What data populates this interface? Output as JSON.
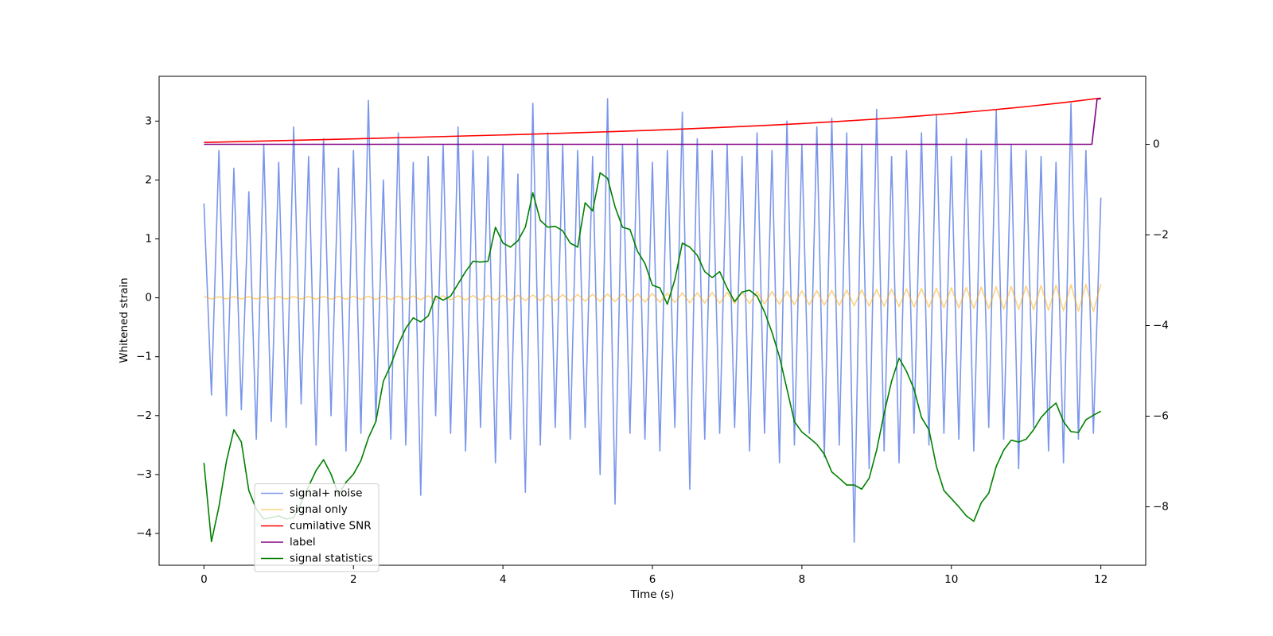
{
  "chart_data": {
    "type": "line",
    "xlabel": "Time (s)",
    "ylabel": "Whitened strain",
    "xlim": [
      -0.6,
      12.6
    ],
    "xticks": [
      0,
      2,
      4,
      6,
      8,
      10,
      12
    ],
    "ylim": [
      -4.54,
      3.76
    ],
    "yticks": [
      {
        "value": -4,
        "label": "−4"
      },
      {
        "value": -3,
        "label": "−3"
      },
      {
        "value": -2,
        "label": "−2"
      },
      {
        "value": -1,
        "label": "−1"
      },
      0,
      1,
      2,
      3
    ],
    "y2lim": [
      -9.29,
      1.5
    ],
    "y2ticks": [
      {
        "value": -8,
        "label": "−8"
      },
      {
        "value": -6,
        "label": "−6"
      },
      {
        "value": -4,
        "label": "−4"
      },
      {
        "value": -2,
        "label": "−2"
      },
      0
    ],
    "legend": "lower left",
    "x": [
      0,
      0.1,
      0.2,
      0.3,
      0.4,
      0.5,
      0.6,
      0.7,
      0.8,
      0.9,
      1,
      1.1,
      1.2,
      1.3,
      1.4,
      1.5,
      1.6,
      1.7,
      1.8,
      1.9,
      2,
      2.1,
      2.2,
      2.3,
      2.4,
      2.5,
      2.6,
      2.7,
      2.8,
      2.9,
      3,
      3.1,
      3.2,
      3.3,
      3.4,
      3.5,
      3.6,
      3.7,
      3.8,
      3.9,
      4,
      4.1,
      4.2,
      4.3,
      4.4,
      4.5,
      4.6,
      4.7,
      4.8,
      4.9,
      5,
      5.1,
      5.2,
      5.3,
      5.4,
      5.5,
      5.6,
      5.7,
      5.8,
      5.9,
      6,
      6.1,
      6.2,
      6.3,
      6.4,
      6.5,
      6.6,
      6.7,
      6.8,
      6.9,
      7,
      7.1,
      7.2,
      7.3,
      7.4,
      7.5,
      7.6,
      7.7,
      7.8,
      7.9,
      8,
      8.1,
      8.2,
      8.3,
      8.4,
      8.5,
      8.6,
      8.7,
      8.8,
      8.9,
      9,
      9.1,
      9.2,
      9.3,
      9.4,
      9.5,
      9.6,
      9.7,
      9.8,
      9.9,
      10,
      10.1,
      10.2,
      10.3,
      10.4,
      10.5,
      10.6,
      10.7,
      10.8,
      10.9,
      11,
      11.1,
      11.2,
      11.3,
      11.4,
      11.5,
      11.6,
      11.7,
      11.8,
      11.9,
      12
    ],
    "series": [
      {
        "name": "signal+ noise",
        "color": "#4169e1",
        "alpha": 0.7,
        "values": [
          1.6,
          -1.65,
          2.5,
          -2.0,
          2.2,
          -1.9,
          1.8,
          -2.4,
          2.6,
          -2.1,
          2.3,
          -2.2,
          2.9,
          -1.8,
          2.4,
          -2.5,
          2.7,
          -2.0,
          2.2,
          -2.6,
          2.5,
          -2.3,
          3.35,
          -2.1,
          2.0,
          -2.4,
          2.8,
          -2.5,
          2.3,
          -3.35,
          2.4,
          -2.0,
          2.6,
          -2.3,
          2.9,
          -2.6,
          2.5,
          -2.2,
          2.4,
          -2.8,
          2.6,
          -2.4,
          2.1,
          -3.3,
          3.3,
          -2.5,
          2.8,
          -2.2,
          2.6,
          -2.4,
          2.5,
          -2.2,
          2.4,
          -3.0,
          3.38,
          -3.5,
          2.6,
          -2.3,
          2.7,
          -2.4,
          2.3,
          -2.6,
          2.5,
          -2.2,
          3.15,
          -3.25,
          2.7,
          -2.4,
          2.5,
          -2.3,
          2.6,
          -2.2,
          2.4,
          -2.6,
          2.8,
          -2.3,
          2.5,
          -2.8,
          3.0,
          -2.5,
          2.6,
          -2.3,
          2.9,
          -2.7,
          3.05,
          -2.5,
          2.8,
          -4.15,
          2.6,
          -2.9,
          3.2,
          -2.6,
          2.4,
          -2.8,
          2.5,
          -2.3,
          2.8,
          -2.5,
          3.1,
          -2.3,
          2.4,
          -2.4,
          2.7,
          -2.6,
          2.5,
          -2.2,
          3.2,
          -2.4,
          2.6,
          -2.9,
          2.5,
          -2.2,
          2.4,
          -2.6,
          2.3,
          -2.8,
          3.3,
          -2.4,
          2.5,
          -2.3,
          1.7
        ]
      },
      {
        "name": "signal only",
        "color": "#ffa500",
        "alpha": 0.5,
        "values": [
          0.02,
          -0.02,
          0.02,
          -0.02,
          0.02,
          -0.02,
          0.02,
          -0.02,
          0.02,
          -0.02,
          0.021,
          -0.022,
          0.022,
          -0.023,
          0.023,
          -0.024,
          0.024,
          -0.025,
          0.025,
          -0.026,
          0.026,
          -0.027,
          0.027,
          -0.028,
          0.029,
          -0.03,
          0.03,
          -0.031,
          0.032,
          -0.033,
          0.034,
          -0.035,
          0.036,
          -0.037,
          0.038,
          -0.039,
          0.039,
          -0.04,
          0.041,
          -0.043,
          0.044,
          -0.045,
          0.046,
          -0.048,
          0.049,
          -0.05,
          0.052,
          -0.053,
          0.054,
          -0.056,
          0.058,
          -0.059,
          0.061,
          -0.062,
          0.064,
          -0.066,
          0.067,
          -0.069,
          0.071,
          -0.072,
          0.074,
          -0.076,
          0.078,
          -0.08,
          0.082,
          -0.084,
          0.086,
          -0.088,
          0.09,
          -0.092,
          0.094,
          -0.096,
          0.098,
          -0.1,
          0.103,
          -0.105,
          0.107,
          -0.11,
          0.112,
          -0.114,
          0.116,
          -0.119,
          0.121,
          -0.124,
          0.126,
          -0.129,
          0.131,
          -0.134,
          0.136,
          -0.139,
          0.142,
          -0.144,
          0.147,
          -0.15,
          0.152,
          -0.155,
          0.158,
          -0.161,
          0.164,
          -0.167,
          0.17,
          -0.173,
          0.176,
          -0.179,
          0.182,
          -0.185,
          0.188,
          -0.192,
          0.195,
          -0.198,
          0.202,
          -0.205,
          0.208,
          -0.212,
          0.215,
          -0.219,
          0.222,
          -0.226,
          0.229,
          -0.233,
          0.236
        ]
      },
      {
        "name": "cumilative SNR",
        "color": "#ff0000",
        "alpha": 1,
        "axis": "y2",
        "x": [
          0,
          0.5,
          1,
          1.5,
          2,
          2.5,
          3,
          3.5,
          4,
          4.5,
          5,
          5.5,
          6,
          6.5,
          7,
          7.5,
          8,
          8.5,
          9,
          9.5,
          10,
          10.5,
          11,
          11.5,
          12
        ],
        "values": [
          0.04,
          0.06,
          0.08,
          0.1,
          0.12,
          0.141,
          0.162,
          0.184,
          0.206,
          0.23,
          0.255,
          0.282,
          0.311,
          0.343,
          0.378,
          0.416,
          0.458,
          0.505,
          0.557,
          0.615,
          0.68,
          0.752,
          0.831,
          0.92,
          1.02
        ]
      },
      {
        "name": "label",
        "color": "#800080",
        "alpha": 1,
        "axis": "y2",
        "x": [
          0,
          11.88,
          11.95,
          12
        ],
        "values": [
          0,
          0,
          1,
          1
        ]
      },
      {
        "name": "signal statistics",
        "color": "#008000",
        "alpha": 1,
        "axis": "y2",
        "values": [
          -7.03,
          -8.77,
          -8.0,
          -7.0,
          -6.3,
          -6.57,
          -7.64,
          -8.05,
          -8.27,
          -8.24,
          -8.2,
          -8.27,
          -8.24,
          -7.91,
          -7.55,
          -7.2,
          -6.96,
          -7.28,
          -7.73,
          -7.46,
          -7.28,
          -6.98,
          -6.48,
          -6.12,
          -5.23,
          -4.87,
          -4.42,
          -4.06,
          -3.83,
          -3.92,
          -3.79,
          -3.35,
          -3.44,
          -3.35,
          -3.08,
          -2.81,
          -2.58,
          -2.6,
          -2.58,
          -1.83,
          -2.18,
          -2.27,
          -2.13,
          -1.83,
          -1.07,
          -1.68,
          -1.83,
          -1.81,
          -1.91,
          -2.18,
          -2.27,
          -1.29,
          -1.47,
          -0.63,
          -0.75,
          -1.38,
          -1.83,
          -1.88,
          -2.36,
          -2.63,
          -3.11,
          -3.17,
          -3.53,
          -2.99,
          -2.18,
          -2.27,
          -2.45,
          -2.81,
          -2.94,
          -2.81,
          -3.17,
          -3.47,
          -3.26,
          -3.22,
          -3.35,
          -3.7,
          -4.15,
          -4.69,
          -5.4,
          -6.12,
          -6.35,
          -6.48,
          -6.62,
          -6.84,
          -7.23,
          -7.37,
          -7.52,
          -7.52,
          -7.61,
          -7.37,
          -6.75,
          -5.94,
          -5.23,
          -4.72,
          -5.01,
          -5.4,
          -6.03,
          -6.3,
          -7.11,
          -7.64,
          -7.82,
          -8.0,
          -8.2,
          -8.32,
          -7.91,
          -7.7,
          -7.11,
          -6.75,
          -6.53,
          -6.57,
          -6.51,
          -6.3,
          -6.03,
          -5.85,
          -5.71,
          -6.12,
          -6.34,
          -6.36,
          -6.08,
          -5.98,
          -5.89
        ]
      }
    ]
  }
}
